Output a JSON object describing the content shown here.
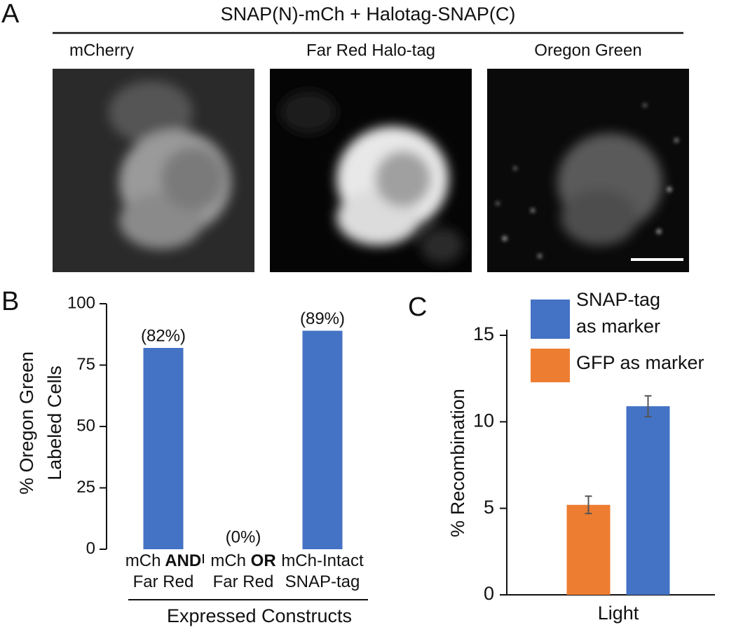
{
  "panels": [
    "A",
    "B",
    "C"
  ],
  "header": "SNAP(N)-mCh + Halotag-SNAP(C)",
  "images": [
    "mCherry",
    "Far Red Halo-tag",
    "Oregon Green"
  ],
  "chart_data": [
    {
      "type": "bar",
      "ylabel": [
        "% Oregon Green",
        "Labeled Cells"
      ],
      "xlabel": "Expressed Constructs",
      "categories": [
        [
          "mCh AND",
          "Far Red"
        ],
        [
          "mCh OR",
          "Far Red"
        ],
        [
          "mCh-Intact",
          "SNAP-tag"
        ]
      ],
      "values": [
        82,
        0,
        89
      ],
      "value_labels": [
        "(82%)",
        "(0%)",
        "(89%)"
      ],
      "color": "#4472c4",
      "ylim": [
        0,
        100
      ],
      "yticks": [
        0,
        25,
        50,
        75,
        100
      ]
    },
    {
      "type": "bar",
      "ylabel": "% Recombination",
      "categories": [
        "Light"
      ],
      "series": [
        {
          "name": "GFP as marker",
          "color": "#ed7d31",
          "values": [
            5.2
          ],
          "errors": [
            0.5
          ]
        },
        {
          "name": "SNAP-tag as marker",
          "color": "#4472c4",
          "values": [
            10.9
          ],
          "errors": [
            0.6
          ]
        }
      ],
      "ylim": [
        0,
        15
      ],
      "yticks": [
        0,
        5,
        10,
        15
      ]
    }
  ]
}
